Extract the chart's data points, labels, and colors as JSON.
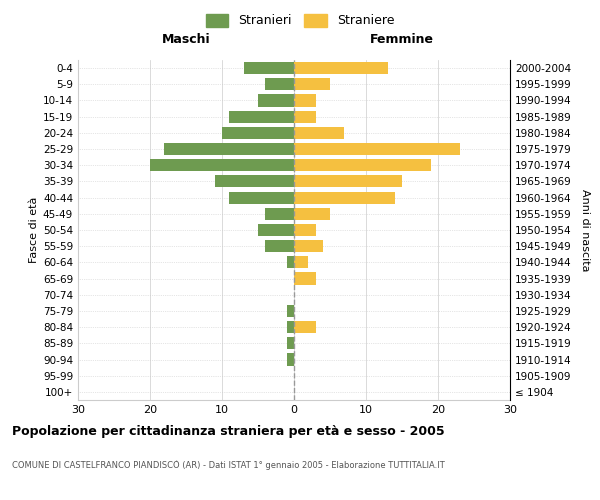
{
  "age_groups": [
    "100+",
    "95-99",
    "90-94",
    "85-89",
    "80-84",
    "75-79",
    "70-74",
    "65-69",
    "60-64",
    "55-59",
    "50-54",
    "45-49",
    "40-44",
    "35-39",
    "30-34",
    "25-29",
    "20-24",
    "15-19",
    "10-14",
    "5-9",
    "0-4"
  ],
  "birth_years": [
    "≤ 1904",
    "1905-1909",
    "1910-1914",
    "1915-1919",
    "1920-1924",
    "1925-1929",
    "1930-1934",
    "1935-1939",
    "1940-1944",
    "1945-1949",
    "1950-1954",
    "1955-1959",
    "1960-1964",
    "1965-1969",
    "1970-1974",
    "1975-1979",
    "1980-1984",
    "1985-1989",
    "1990-1994",
    "1995-1999",
    "2000-2004"
  ],
  "males": [
    0,
    0,
    1,
    1,
    1,
    1,
    0,
    0,
    1,
    4,
    5,
    4,
    9,
    11,
    20,
    18,
    10,
    9,
    5,
    4,
    7
  ],
  "females": [
    0,
    0,
    0,
    0,
    3,
    0,
    0,
    3,
    2,
    4,
    3,
    5,
    14,
    15,
    19,
    23,
    7,
    3,
    3,
    5,
    13
  ],
  "male_color": "#6e9b50",
  "female_color": "#f5c040",
  "background_color": "#ffffff",
  "grid_color": "#cccccc",
  "title": "Popolazione per cittadinanza straniera per età e sesso - 2005",
  "subtitle": "COMUNE DI CASTELFRANCO PIANDISCÒ (AR) - Dati ISTAT 1° gennaio 2005 - Elaborazione TUTTITALIA.IT",
  "xlabel_left": "Maschi",
  "xlabel_right": "Femmine",
  "ylabel_left": "Fasce di età",
  "ylabel_right": "Anni di nascita",
  "xlim": 30,
  "legend_labels": [
    "Stranieri",
    "Straniere"
  ]
}
